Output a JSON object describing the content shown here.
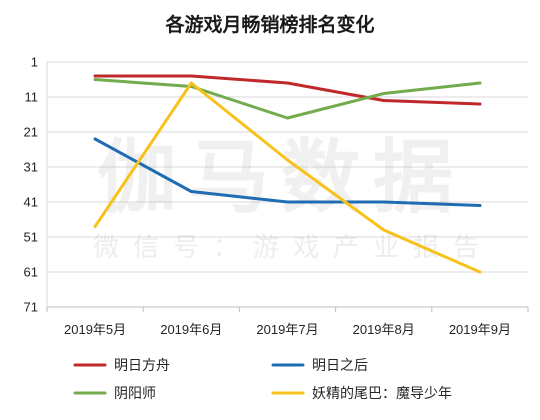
{
  "chart_data": {
    "type": "line",
    "title": "各游戏月畅销榜排名变化",
    "xlabel": "",
    "ylabel": "",
    "categories": [
      "2019年5月",
      "2019年6月",
      "2019年7月",
      "2019年8月",
      "2019年9月"
    ],
    "yticks": [
      1,
      11,
      21,
      31,
      41,
      51,
      61,
      71
    ],
    "ylim": [
      1,
      71
    ],
    "y_reversed": true,
    "grid": true,
    "legend_position": "bottom",
    "series": [
      {
        "name": "明日方舟",
        "color": "#C0282C",
        "values": [
          5,
          5,
          7,
          12,
          13
        ]
      },
      {
        "name": "明日之后",
        "color": "#1E6DB4",
        "values": [
          23,
          38,
          41,
          41,
          42
        ]
      },
      {
        "name": "阴阳师",
        "color": "#72AC4D",
        "values": [
          6,
          8,
          17,
          10,
          7
        ]
      },
      {
        "name": "妖精的尾巴：魔导少年",
        "color": "#F7C21C",
        "values": [
          48,
          7,
          29,
          49,
          61
        ]
      }
    ]
  },
  "watermark": {
    "main": "伽马数据",
    "sub": "微信号：游戏产业报告"
  }
}
